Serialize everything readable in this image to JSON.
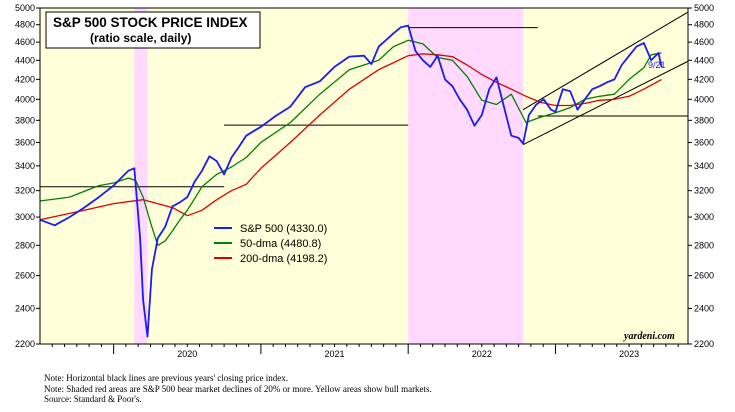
{
  "chart_data": {
    "type": "line",
    "title": "S&P 500 STOCK PRICE INDEX",
    "subtitle": "(ratio scale, daily)",
    "y_scale": "log",
    "ylim": [
      2200,
      5000
    ],
    "yticks": [
      2200,
      2400,
      2600,
      2800,
      3000,
      3200,
      3400,
      3600,
      3800,
      4000,
      4200,
      4400,
      4600,
      4800,
      5000
    ],
    "xlim": [
      2019.5,
      2023.9
    ],
    "xtick_labels": [
      "2020",
      "2021",
      "2022",
      "2023"
    ],
    "shaded_regions": [
      {
        "type": "bear",
        "from": 2020.14,
        "to": 2020.23,
        "color": "#ffd9ff"
      },
      {
        "type": "bear",
        "from": 2022.0,
        "to": 2022.78,
        "color": "#ffd9ff"
      }
    ],
    "bull_color": "#ffffd9",
    "series": [
      {
        "name": "S&P 500",
        "label": "S&P 500 (4330.0)",
        "color": "#1a1aff",
        "x": [
          2019.5,
          2019.6,
          2019.7,
          2019.8,
          2019.9,
          2020.0,
          2020.05,
          2020.1,
          2020.14,
          2020.18,
          2020.2,
          2020.23,
          2020.26,
          2020.3,
          2020.35,
          2020.4,
          2020.45,
          2020.5,
          2020.55,
          2020.6,
          2020.65,
          2020.7,
          2020.75,
          2020.8,
          2020.85,
          2020.9,
          2020.95,
          2021.0,
          2021.1,
          2021.2,
          2021.3,
          2021.4,
          2021.5,
          2021.6,
          2021.7,
          2021.75,
          2021.8,
          2021.9,
          2021.95,
          2022.0,
          2022.05,
          2022.1,
          2022.15,
          2022.2,
          2022.25,
          2022.3,
          2022.35,
          2022.4,
          2022.45,
          2022.5,
          2022.55,
          2022.6,
          2022.65,
          2022.7,
          2022.75,
          2022.78,
          2022.82,
          2022.87,
          2022.92,
          2022.97,
          2023.0,
          2023.05,
          2023.1,
          2023.15,
          2023.2,
          2023.25,
          2023.3,
          2023.35,
          2023.4,
          2023.45,
          2023.5,
          2023.55,
          2023.6,
          2023.65,
          2023.7,
          2023.72
        ],
        "values": [
          2980,
          2940,
          3000,
          3070,
          3150,
          3240,
          3300,
          3360,
          3380,
          2850,
          2450,
          2240,
          2640,
          2850,
          2930,
          3080,
          3110,
          3150,
          3270,
          3360,
          3480,
          3440,
          3330,
          3470,
          3560,
          3660,
          3700,
          3740,
          3840,
          3930,
          4120,
          4180,
          4330,
          4440,
          4450,
          4360,
          4550,
          4700,
          4770,
          4790,
          4500,
          4400,
          4330,
          4450,
          4200,
          4130,
          4000,
          3900,
          3750,
          3850,
          4100,
          4220,
          3930,
          3660,
          3640,
          3590,
          3850,
          3950,
          4000,
          3900,
          3880,
          4100,
          4080,
          3900,
          4000,
          4100,
          4130,
          4170,
          4200,
          4350,
          4450,
          4550,
          4590,
          4400,
          4480,
          4330
        ]
      },
      {
        "name": "50-dma",
        "label": "50-dma (4480.8)",
        "color": "#008000",
        "x": [
          2019.5,
          2019.7,
          2019.9,
          2020.0,
          2020.1,
          2020.15,
          2020.2,
          2020.25,
          2020.3,
          2020.35,
          2020.4,
          2020.45,
          2020.5,
          2020.6,
          2020.7,
          2020.8,
          2020.9,
          2021.0,
          2021.2,
          2021.4,
          2021.6,
          2021.8,
          2021.9,
          2022.0,
          2022.1,
          2022.2,
          2022.3,
          2022.4,
          2022.5,
          2022.6,
          2022.7,
          2022.8,
          2022.9,
          2023.0,
          2023.1,
          2023.2,
          2023.3,
          2023.4,
          2023.5,
          2023.6,
          2023.65,
          2023.72
        ],
        "values": [
          3120,
          3150,
          3240,
          3260,
          3300,
          3280,
          3150,
          2960,
          2800,
          2830,
          2900,
          2980,
          3050,
          3230,
          3330,
          3390,
          3470,
          3600,
          3780,
          4050,
          4300,
          4400,
          4550,
          4620,
          4580,
          4430,
          4400,
          4230,
          3990,
          3950,
          4050,
          3780,
          3830,
          3870,
          3920,
          4000,
          4030,
          4050,
          4200,
          4320,
          4460,
          4481
        ]
      },
      {
        "name": "200-dma",
        "label": "200-dma (4198.2)",
        "color": "#e00000",
        "x": [
          2019.5,
          2019.8,
          2020.0,
          2020.2,
          2020.4,
          2020.5,
          2020.6,
          2020.7,
          2020.8,
          2020.9,
          2021.0,
          2021.2,
          2021.4,
          2021.6,
          2021.8,
          2022.0,
          2022.1,
          2022.2,
          2022.3,
          2022.4,
          2022.5,
          2022.6,
          2022.7,
          2022.8,
          2022.9,
          2023.0,
          2023.1,
          2023.2,
          2023.3,
          2023.4,
          2023.5,
          2023.6,
          2023.72
        ],
        "values": [
          2980,
          3050,
          3100,
          3130,
          3070,
          3010,
          3050,
          3130,
          3200,
          3250,
          3380,
          3600,
          3850,
          4100,
          4300,
          4450,
          4470,
          4460,
          4440,
          4350,
          4250,
          4170,
          4100,
          4030,
          3970,
          3940,
          3940,
          3960,
          3990,
          4000,
          4030,
          4100,
          4198
        ]
      }
    ],
    "reference_lines": [
      {
        "y": 3231,
        "from": 2019.5,
        "to": 2020.75
      },
      {
        "y": 3756,
        "from": 2020.75,
        "to": 2022.0
      },
      {
        "y": 4766,
        "from": 2022.0,
        "to": 2022.88
      },
      {
        "y": 3840,
        "from": 2022.88,
        "to": 2023.9
      }
    ],
    "channel_lines": [
      {
        "x": [
          2022.78,
          2023.9
        ],
        "values": [
          3900,
          4950
        ]
      },
      {
        "x": [
          2022.78,
          2023.9
        ],
        "values": [
          3580,
          4390
        ]
      }
    ],
    "last_date_label": "9/21",
    "source_credit": "yardeni.com"
  },
  "notes": [
    "Note: Horizontal black lines are previous years' closing price index.",
    "Note: Shaded red areas are S&P 500 bear market declines of 20% or more. Yellow areas show bull markets.",
    "Source: Standard & Poor's."
  ]
}
